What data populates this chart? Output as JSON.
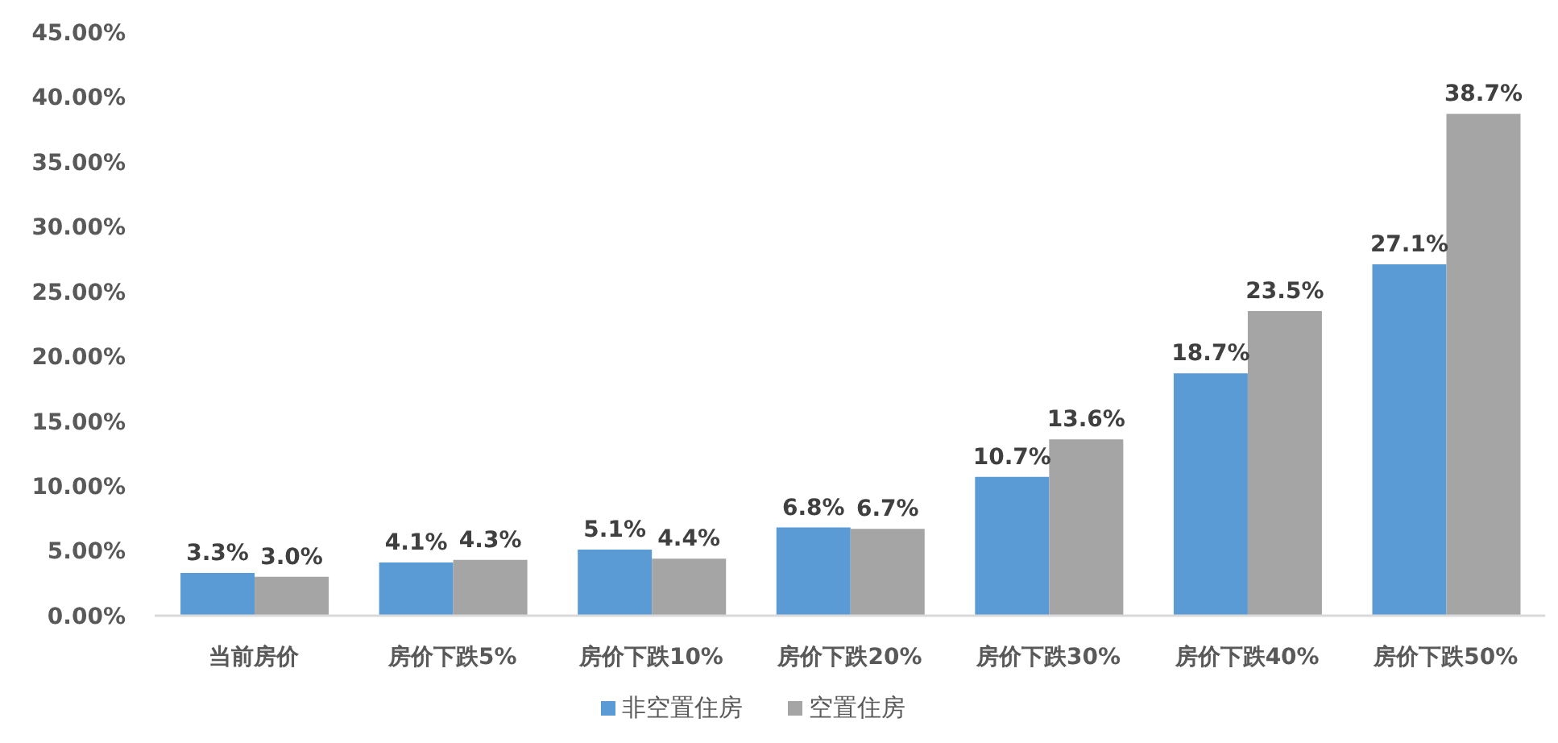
{
  "chart_data": {
    "type": "bar",
    "categories": [
      "当前房价",
      "房价下跌5%",
      "房价下跌10%",
      "房价下跌20%",
      "房价下跌30%",
      "房价下跌40%",
      "房价下跌50%"
    ],
    "series": [
      {
        "name": "非空置住房",
        "color": "#5b9bd5",
        "values": [
          3.3,
          4.1,
          5.1,
          6.8,
          10.7,
          18.7,
          27.1
        ],
        "value_labels": [
          "3.3%",
          "4.1%",
          "5.1%",
          "6.8%",
          "10.7%",
          "18.7%",
          "27.1%"
        ]
      },
      {
        "name": "空置住房",
        "color": "#a5a5a5",
        "values": [
          3.0,
          4.3,
          4.4,
          6.7,
          13.6,
          23.5,
          38.7
        ],
        "value_labels": [
          "3.0%",
          "4.3%",
          "4.4%",
          "6.7%",
          "13.6%",
          "23.5%",
          "38.7%"
        ]
      }
    ],
    "ylim": [
      0,
      45
    ],
    "yticks": [
      {
        "value": 0,
        "label": "0.00%"
      },
      {
        "value": 5,
        "label": "5.00%"
      },
      {
        "value": 10,
        "label": "10.00%"
      },
      {
        "value": 15,
        "label": "15.00%"
      },
      {
        "value": 20,
        "label": "20.00%"
      },
      {
        "value": 25,
        "label": "25.00%"
      },
      {
        "value": 30,
        "label": "30.00%"
      },
      {
        "value": 35,
        "label": "35.00%"
      },
      {
        "value": 40,
        "label": "40.00%"
      },
      {
        "value": 45,
        "label": "45.00%"
      }
    ],
    "legend": "bottom"
  }
}
